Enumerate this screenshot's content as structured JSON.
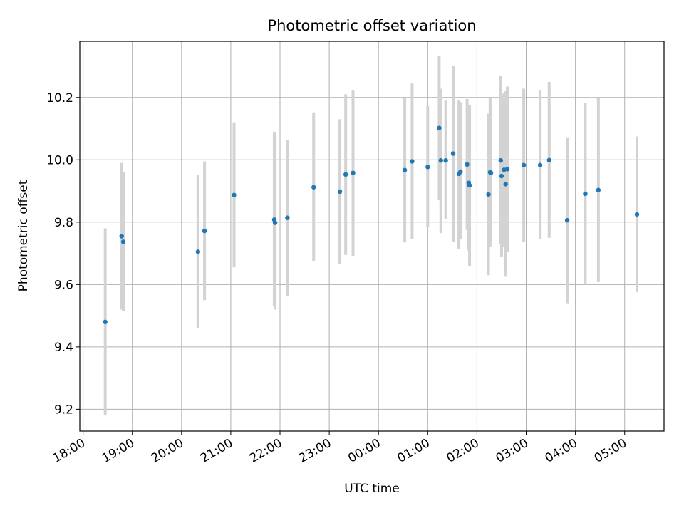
{
  "chart_data": {
    "type": "scatter",
    "title": "Photometric offset variation",
    "xlabel": "UTC time",
    "ylabel": "Photometric offset",
    "xlim": [
      "2000-01-01T17:56",
      "2000-01-02T05:48"
    ],
    "ylim": [
      9.13,
      10.38
    ],
    "grid": true,
    "x_ticks": [
      {
        "t": "2000-01-01T18:00",
        "label": "18:00"
      },
      {
        "t": "2000-01-01T19:00",
        "label": "19:00"
      },
      {
        "t": "2000-01-01T20:00",
        "label": "20:00"
      },
      {
        "t": "2000-01-01T21:00",
        "label": "21:00"
      },
      {
        "t": "2000-01-01T22:00",
        "label": "22:00"
      },
      {
        "t": "2000-01-01T23:00",
        "label": "23:00"
      },
      {
        "t": "2000-01-02T00:00",
        "label": "00:00"
      },
      {
        "t": "2000-01-02T01:00",
        "label": "01:00"
      },
      {
        "t": "2000-01-02T02:00",
        "label": "02:00"
      },
      {
        "t": "2000-01-02T03:00",
        "label": "03:00"
      },
      {
        "t": "2000-01-02T04:00",
        "label": "04:00"
      },
      {
        "t": "2000-01-02T05:00",
        "label": "05:00"
      }
    ],
    "y_ticks": [
      {
        "v": 9.2,
        "label": "9.2"
      },
      {
        "v": 9.4,
        "label": "9.4"
      },
      {
        "v": 9.6,
        "label": "9.6"
      },
      {
        "v": 9.8,
        "label": "9.8"
      },
      {
        "v": 10.0,
        "label": "10.0"
      },
      {
        "v": 10.2,
        "label": "10.2"
      }
    ],
    "colors": {
      "point": "#1f77b4",
      "errorbar": "#d3d3d3",
      "grid": "#b0b0b0",
      "axes": "#000000"
    },
    "points": [
      {
        "t": "2000-01-01T18:27",
        "y": 9.48,
        "lo": 9.18,
        "hi": 9.78
      },
      {
        "t": "2000-01-01T18:47",
        "y": 9.755,
        "lo": 9.52,
        "hi": 9.99
      },
      {
        "t": "2000-01-01T18:49",
        "y": 9.737,
        "lo": 9.515,
        "hi": 9.96
      },
      {
        "t": "2000-01-01T20:20",
        "y": 9.705,
        "lo": 9.46,
        "hi": 9.95
      },
      {
        "t": "2000-01-01T20:28",
        "y": 9.772,
        "lo": 9.55,
        "hi": 9.995
      },
      {
        "t": "2000-01-01T21:04",
        "y": 9.887,
        "lo": 9.655,
        "hi": 10.12
      },
      {
        "t": "2000-01-01T21:53",
        "y": 9.808,
        "lo": 9.53,
        "hi": 10.09
      },
      {
        "t": "2000-01-01T21:54",
        "y": 9.798,
        "lo": 9.52,
        "hi": 10.075
      },
      {
        "t": "2000-01-01T22:09",
        "y": 9.814,
        "lo": 9.562,
        "hi": 10.062
      },
      {
        "t": "2000-01-01T22:41",
        "y": 9.912,
        "lo": 9.675,
        "hi": 10.152
      },
      {
        "t": "2000-01-01T23:13",
        "y": 9.898,
        "lo": 9.665,
        "hi": 10.13
      },
      {
        "t": "2000-01-01T23:20",
        "y": 9.953,
        "lo": 9.695,
        "hi": 10.21
      },
      {
        "t": "2000-01-01T23:29",
        "y": 9.958,
        "lo": 9.692,
        "hi": 10.222
      },
      {
        "t": "2000-01-02T00:32",
        "y": 9.967,
        "lo": 9.735,
        "hi": 10.198
      },
      {
        "t": "2000-01-02T00:41",
        "y": 9.995,
        "lo": 9.745,
        "hi": 10.245
      },
      {
        "t": "2000-01-02T01:00",
        "y": 9.977,
        "lo": 9.785,
        "hi": 10.172
      },
      {
        "t": "2000-01-02T01:14",
        "y": 10.102,
        "lo": 9.87,
        "hi": 10.332
      },
      {
        "t": "2000-01-02T01:16",
        "y": 9.998,
        "lo": 9.765,
        "hi": 10.228
      },
      {
        "t": "2000-01-02T01:22",
        "y": 9.998,
        "lo": 9.81,
        "hi": 10.19
      },
      {
        "t": "2000-01-02T01:31",
        "y": 10.02,
        "lo": 9.738,
        "hi": 10.302
      },
      {
        "t": "2000-01-02T01:38",
        "y": 9.955,
        "lo": 9.715,
        "hi": 10.19
      },
      {
        "t": "2000-01-02T01:40",
        "y": 9.962,
        "lo": 9.745,
        "hi": 10.185
      },
      {
        "t": "2000-01-02T01:48",
        "y": 9.985,
        "lo": 9.775,
        "hi": 10.195
      },
      {
        "t": "2000-01-02T01:50",
        "y": 9.926,
        "lo": 9.71,
        "hi": 10.142
      },
      {
        "t": "2000-01-02T01:51",
        "y": 9.918,
        "lo": 9.66,
        "hi": 10.175
      },
      {
        "t": "2000-01-02T02:14",
        "y": 9.889,
        "lo": 9.63,
        "hi": 10.148
      },
      {
        "t": "2000-01-02T02:16",
        "y": 9.96,
        "lo": 9.72,
        "hi": 10.198
      },
      {
        "t": "2000-01-02T02:17",
        "y": 9.958,
        "lo": 9.74,
        "hi": 10.18
      },
      {
        "t": "2000-01-02T02:29",
        "y": 9.998,
        "lo": 9.73,
        "hi": 10.27
      },
      {
        "t": "2000-01-02T02:30",
        "y": 9.948,
        "lo": 9.69,
        "hi": 10.205
      },
      {
        "t": "2000-01-02T02:33",
        "y": 9.968,
        "lo": 9.72,
        "hi": 10.215
      },
      {
        "t": "2000-01-02T02:35",
        "y": 9.922,
        "lo": 9.625,
        "hi": 10.22
      },
      {
        "t": "2000-01-02T02:37",
        "y": 9.97,
        "lo": 9.705,
        "hi": 10.235
      },
      {
        "t": "2000-01-02T02:57",
        "y": 9.983,
        "lo": 9.738,
        "hi": 10.228
      },
      {
        "t": "2000-01-02T03:17",
        "y": 9.983,
        "lo": 9.745,
        "hi": 10.222
      },
      {
        "t": "2000-01-02T03:28",
        "y": 9.999,
        "lo": 9.75,
        "hi": 10.25
      },
      {
        "t": "2000-01-02T03:50",
        "y": 9.806,
        "lo": 9.54,
        "hi": 10.072
      },
      {
        "t": "2000-01-02T04:12",
        "y": 9.891,
        "lo": 9.6,
        "hi": 10.182
      },
      {
        "t": "2000-01-02T04:28",
        "y": 9.903,
        "lo": 9.608,
        "hi": 10.198
      },
      {
        "t": "2000-01-02T05:15",
        "y": 9.825,
        "lo": 9.575,
        "hi": 10.075
      }
    ]
  }
}
